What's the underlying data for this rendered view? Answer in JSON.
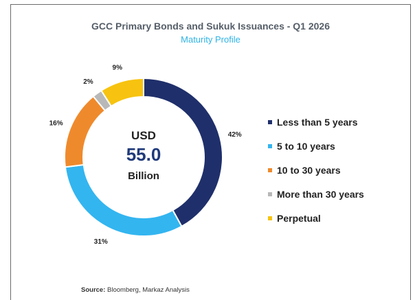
{
  "chart_data": {
    "type": "pie",
    "title": "GCC Primary Bonds and Sukuk Issuances - Q1 2026",
    "subtitle": "Maturity Profile",
    "center": {
      "line1": "USD",
      "value": "55.0",
      "line3": "Billion"
    },
    "categories": [
      "Less than 5 years",
      "5 to 10 years",
      "10 to 30 years",
      "More than 30 years",
      "Perpetual"
    ],
    "values": [
      42,
      31,
      16,
      2,
      9
    ],
    "labels": [
      "42%",
      "31%",
      "16%",
      "2%",
      "9%"
    ],
    "colors": [
      "#1f2f6b",
      "#33b5f0",
      "#ef8a2c",
      "#b8b8b8",
      "#f7c310"
    ],
    "legend_position": "right"
  },
  "source": {
    "prefix": "Source:",
    "text": "Bloomberg, Markaz Analysis"
  }
}
